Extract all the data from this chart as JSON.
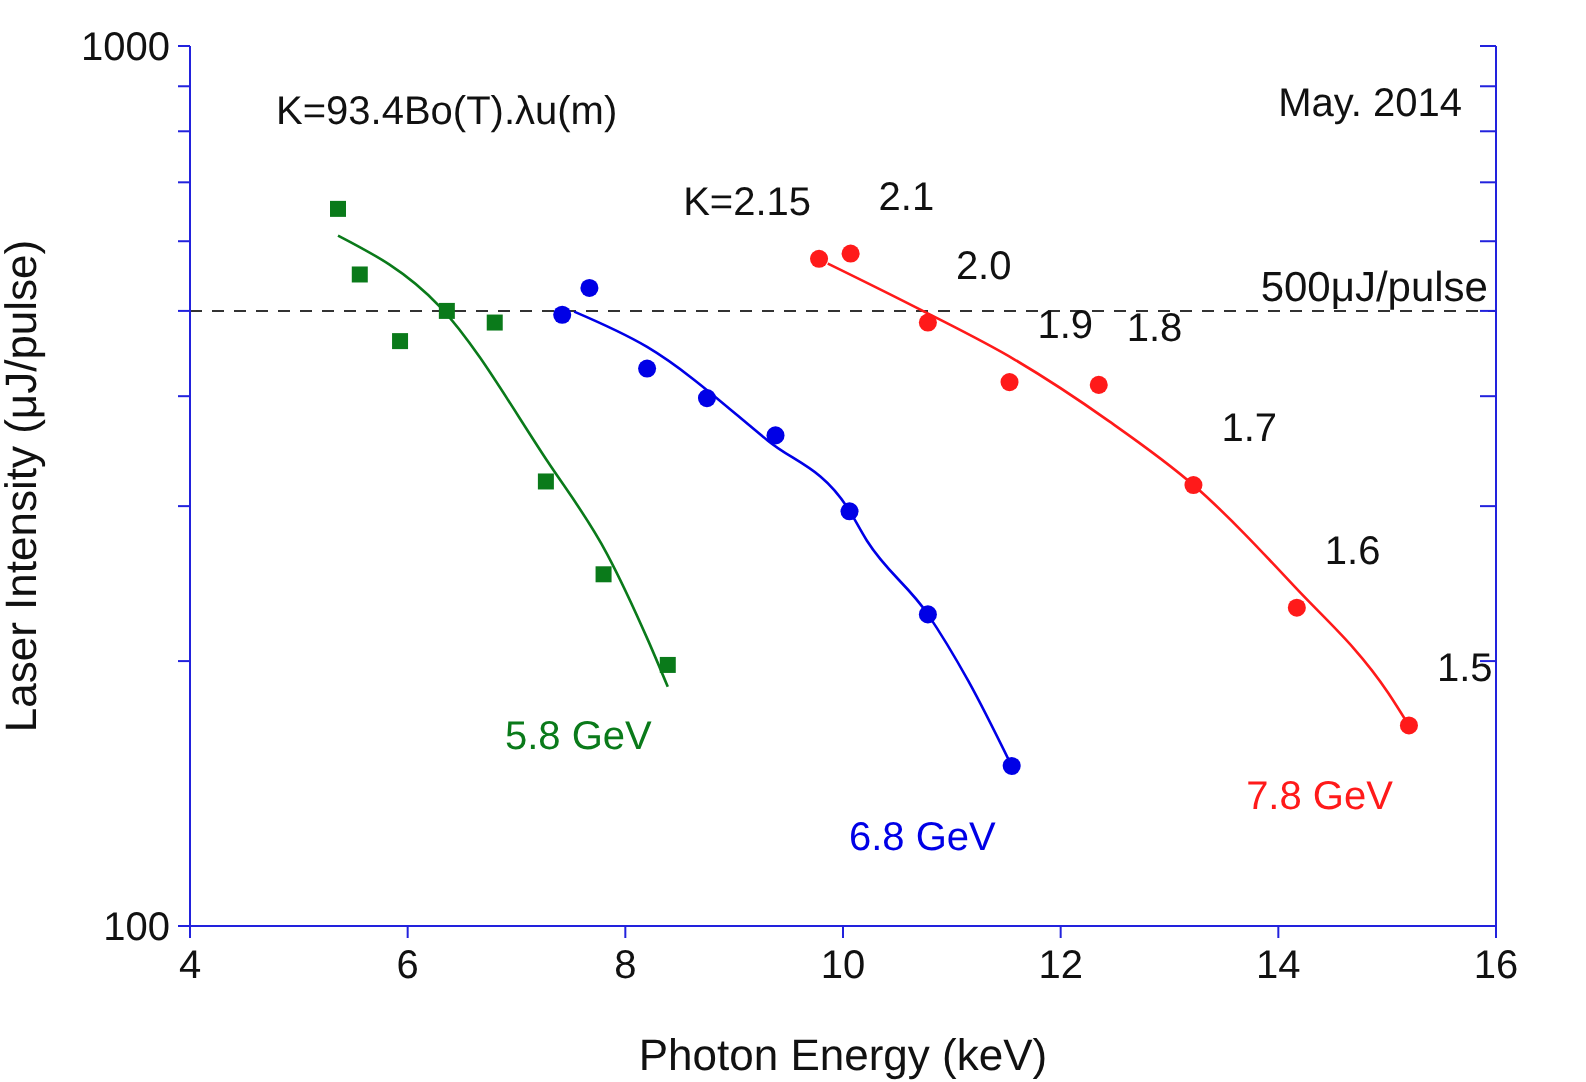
{
  "chart_data": {
    "type": "scatter",
    "xlabel": "Photon Energy (keV)",
    "ylabel": "Laser Intensity (μJ/pulse)",
    "log": "y",
    "xlim": [
      4,
      16
    ],
    "xticks": [
      4,
      6,
      8,
      10,
      12,
      14,
      16
    ],
    "ylim": [
      100,
      1000
    ],
    "yticks": [
      100,
      {
        "value": 200,
        "label": null
      },
      {
        "value": 300,
        "label": null
      },
      {
        "value": 400,
        "label": null
      },
      {
        "value": 500,
        "label": null
      },
      {
        "value": 600,
        "label": null
      },
      {
        "value": 700,
        "label": null
      },
      {
        "value": 800,
        "label": null
      },
      {
        "value": 900,
        "label": null
      },
      1000
    ],
    "series": [
      {
        "name": "5.8 GeV",
        "marker": "square",
        "color": "#0a7a1a",
        "x": [
          5.36,
          5.56,
          5.93,
          6.36,
          6.8,
          7.27,
          7.8,
          8.39
        ],
        "values": [
          653,
          550,
          462,
          500,
          485,
          320,
          251,
          198
        ]
      },
      {
        "name": "6.8 GeV",
        "marker": "circle",
        "color": "#0000e6",
        "x": [
          7.42,
          7.67,
          8.2,
          8.75,
          9.38,
          10.06,
          10.78,
          11.55
        ],
        "values": [
          495,
          531,
          430,
          398,
          361,
          296,
          226,
          152
        ]
      },
      {
        "name": "7.8 GeV",
        "marker": "circle",
        "color": "#ff1a1a",
        "x": [
          9.78,
          10.07,
          10.78,
          11.53,
          12.35,
          13.22,
          14.17,
          15.2
        ],
        "values": [
          573,
          581,
          485,
          415,
          412,
          317,
          230,
          169
        ]
      },
      {
        "type": "line",
        "marker": "none",
        "color": "#0a7a1a",
        "x": [
          5.36,
          6.3,
          7.28,
          7.83,
          8.21,
          8.39
        ],
        "values": [
          609,
          505,
          338,
          265,
          211,
          187
        ]
      },
      {
        "type": "line",
        "marker": "none",
        "color": "#0000e6",
        "x": [
          7.53,
          8.2,
          9.31,
          10.04,
          10.22,
          10.78,
          11.15,
          11.55
        ],
        "values": [
          499,
          455,
          356,
          299,
          274,
          226,
          190,
          152
        ]
      },
      {
        "type": "line",
        "marker": "none",
        "color": "#ff1a1a",
        "x": [
          9.86,
          10.72,
          11.58,
          12.44,
          13.22,
          14.15,
          15.01,
          15.2
        ],
        "values": [
          566,
          501,
          440,
          375,
          317,
          243,
          184,
          169
        ]
      }
    ],
    "ref_lines": [
      {
        "axis": "y",
        "value": 500,
        "label": "500μJ/pulse",
        "line_style": "dashed",
        "color": "#333333"
      }
    ],
    "annotations": [
      "K=93.4Bo(T).λu(m)",
      "May. 2014",
      {
        "text": "K=2.15",
        "x": 9.78,
        "y": 573
      },
      {
        "text": "2.1",
        "x": 10.07,
        "y": 581
      },
      {
        "text": "2.0",
        "x": 10.78,
        "y": 485
      },
      {
        "text": "1.9",
        "x": 11.53,
        "y": 415
      },
      {
        "text": "1.8",
        "x": 12.35,
        "y": 412
      },
      {
        "text": "1.7",
        "x": 13.22,
        "y": 317
      },
      {
        "text": "1.6",
        "x": 14.17,
        "y": 230
      },
      {
        "text": "1.5",
        "x": 15.2,
        "y": 169
      }
    ]
  }
}
